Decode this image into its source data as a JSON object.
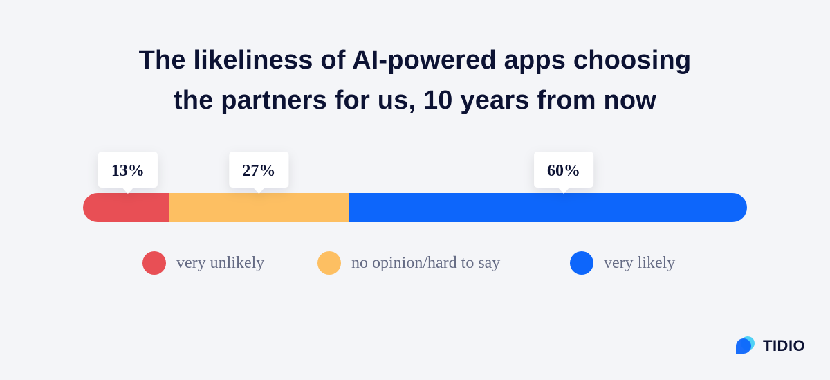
{
  "title": {
    "line1": "The likeliness of AI-powered apps choosing",
    "line2": "the partners for us, 10 years from now"
  },
  "chart_data": {
    "type": "bar",
    "orientation": "horizontal-stacked",
    "categories": [
      "very unlikely",
      "no opinion/hard to say",
      "very likely"
    ],
    "values": [
      13,
      27,
      60
    ],
    "labels": [
      "13%",
      "27%",
      "60%"
    ],
    "colors": [
      "#e84f55",
      "#fdbf62",
      "#0d66fb"
    ],
    "unit": "%",
    "legend_position": "bottom"
  },
  "legend": {
    "items": [
      {
        "label": "very unlikely",
        "color": "#e84f55"
      },
      {
        "label": "no opinion/hard to say",
        "color": "#fdbf62"
      },
      {
        "label": "very likely",
        "color": "#0d66fb"
      }
    ]
  },
  "brand": {
    "name": "TIDIO",
    "icon": "tidio-logo-icon",
    "colors": [
      "#0d66fb",
      "#4fd1f5"
    ]
  }
}
